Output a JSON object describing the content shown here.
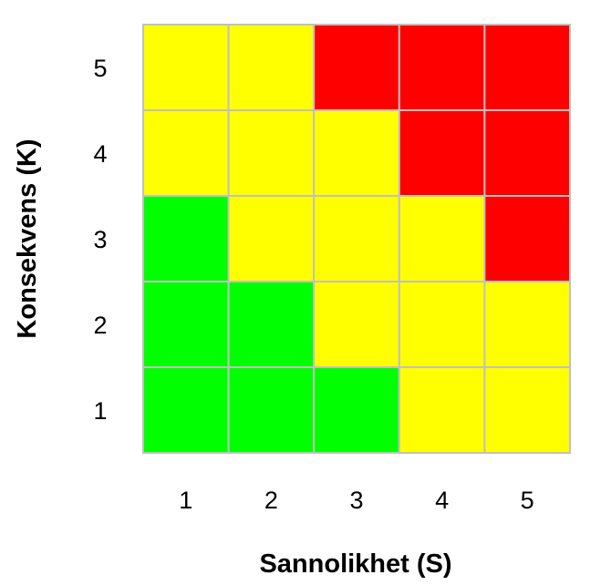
{
  "chart_data": {
    "type": "heatmap",
    "title": "",
    "xlabel": "Sannolikhet (S)",
    "ylabel": "Konsekvens (K)",
    "x_categories": [
      "1",
      "2",
      "3",
      "4",
      "5"
    ],
    "y_categories": [
      "1",
      "2",
      "3",
      "4",
      "5"
    ],
    "colors": {
      "green": "#00ff00",
      "yellow": "#ffff00",
      "red": "#ff0000",
      "grid": "#c0c0c0"
    },
    "cells_top_to_bottom": [
      [
        "yellow",
        "yellow",
        "red",
        "red",
        "red"
      ],
      [
        "yellow",
        "yellow",
        "yellow",
        "red",
        "red"
      ],
      [
        "green",
        "yellow",
        "yellow",
        "yellow",
        "red"
      ],
      [
        "green",
        "green",
        "yellow",
        "yellow",
        "yellow"
      ],
      [
        "green",
        "green",
        "green",
        "yellow",
        "yellow"
      ]
    ],
    "grid": true,
    "legend": "none"
  }
}
